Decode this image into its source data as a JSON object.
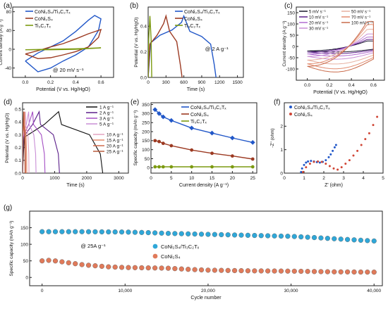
{
  "figure": {
    "colors": {
      "cns_tct": "#2157c8",
      "cns": "#9c3a22",
      "tct": "#7c9a10",
      "cyc_cns_tct": "#2fa7d8",
      "cyc_cns": "#e07a5a"
    }
  },
  "chart_data": [
    {
      "panel": "(a)",
      "type": "line",
      "xlabel": "Potential (V vs. Hg/HgO)",
      "ylabel": "Current density (A g⁻¹)",
      "xlim": [
        -0.1,
        0.7
      ],
      "ylim": [
        -60,
        90
      ],
      "xticks": [
        "0.0",
        "0.2",
        "0.4",
        "0.6"
      ],
      "yticks": [
        "-40",
        "0",
        "40",
        "80"
      ],
      "annotation": "@ 20 mV s⁻¹",
      "legend": [
        "CoNi₂S₄/Ti₃C₂Tₓ",
        "CoNi₂S₄",
        "Ti₃C₂Tₓ"
      ],
      "series": [
        {
          "name": "CoNi₂S₄/Ti₃C₂Tₓ",
          "color": "#2157c8",
          "x": [
            0.0,
            0.1,
            0.2,
            0.3,
            0.4,
            0.5,
            0.55,
            0.6,
            0.58,
            0.5,
            0.4,
            0.3,
            0.2,
            0.1,
            0.0
          ],
          "y": [
            -25,
            -8,
            5,
            18,
            38,
            62,
            72,
            65,
            40,
            5,
            -12,
            -25,
            -40,
            -48,
            -25
          ]
        },
        {
          "name": "CoNi₂S₄",
          "color": "#9c3a22",
          "x": [
            0.0,
            0.1,
            0.2,
            0.3,
            0.4,
            0.5,
            0.6,
            0.58,
            0.5,
            0.4,
            0.3,
            0.2,
            0.1,
            0.0
          ],
          "y": [
            -10,
            -3,
            5,
            12,
            22,
            33,
            42,
            25,
            5,
            -5,
            -12,
            -18,
            -20,
            -10
          ]
        },
        {
          "name": "Ti₃C₂Tₓ",
          "color": "#7c9a10",
          "x": [
            0.0,
            0.2,
            0.4,
            0.6,
            0.4,
            0.2,
            0.0
          ],
          "y": [
            -1,
            0,
            1,
            3,
            0,
            -1,
            -1
          ]
        }
      ]
    },
    {
      "panel": "(b)",
      "type": "line",
      "xlabel": "Time (s)",
      "ylabel": "Potential (V vs. Hg/HgO)",
      "xlim": [
        0,
        1600
      ],
      "ylim": [
        0,
        0.55
      ],
      "xticks": [
        "0",
        "300",
        "600",
        "900",
        "1200",
        "1500"
      ],
      "yticks": [
        "0.0",
        "0.2",
        "0.4"
      ],
      "annotation": "@ 2 A g⁻¹",
      "legend": [
        "CoNi₂S₄/Ti₃C₂Tₓ",
        "CoNi₂S₄",
        "Ti₃C₂Tₓ"
      ],
      "series": [
        {
          "name": "CoNi₂S₄/Ti₃C₂Tₓ",
          "color": "#2157c8",
          "x": [
            0,
            40,
            200,
            400,
            560,
            600,
            700,
            900,
            1050,
            1110,
            1140
          ],
          "y": [
            0.0,
            0.27,
            0.33,
            0.37,
            0.43,
            0.48,
            0.36,
            0.32,
            0.26,
            0.1,
            0.0
          ]
        },
        {
          "name": "CoNi₂S₄",
          "color": "#9c3a22",
          "x": [
            0,
            30,
            150,
            260,
            300,
            360,
            480,
            540,
            570
          ],
          "y": [
            0.0,
            0.26,
            0.33,
            0.42,
            0.48,
            0.36,
            0.28,
            0.1,
            0.0
          ]
        },
        {
          "name": "Ti₃C₂Tₓ",
          "color": "#7c9a10",
          "x": [
            0,
            10,
            30,
            50,
            60
          ],
          "y": [
            0.0,
            0.3,
            0.48,
            0.3,
            0.0
          ]
        }
      ]
    },
    {
      "panel": "(c)",
      "type": "line",
      "xlabel": "Potential (V vs. Hg/HgO)",
      "ylabel": "Current density (A g⁻¹)",
      "xlim": [
        -0.1,
        0.7
      ],
      "ylim": [
        -150,
        175
      ],
      "xticks": [
        "0.0",
        "0.2",
        "0.4",
        "0.6"
      ],
      "yticks": [
        "-100",
        "-50",
        "0",
        "50",
        "100",
        "150"
      ],
      "legend": [
        "5 mV s⁻¹",
        "10 mV s⁻¹",
        "20 mV s⁻¹",
        "30 mV s⁻¹",
        "50 mV s⁻¹",
        "70 mV s⁻¹",
        "100 mV s⁻¹"
      ],
      "series": [
        {
          "name": "5 mV s⁻¹",
          "color": "#1a1a2e",
          "peak": 35
        },
        {
          "name": "10 mV s⁻¹",
          "color": "#5b1f8a",
          "peak": 45
        },
        {
          "name": "20 mV s⁻¹",
          "color": "#b06ad0",
          "peak": 60
        },
        {
          "name": "30 mV s⁻¹",
          "color": "#c98fd6",
          "peak": 80
        },
        {
          "name": "50 mV s⁻¹",
          "color": "#e7b0a0",
          "peak": 110
        },
        {
          "name": "70 mV s⁻¹",
          "color": "#e28c70",
          "peak": 140
        },
        {
          "name": "100 mV s⁻¹",
          "color": "#c96a4a",
          "peak": 160
        }
      ]
    },
    {
      "panel": "(d)",
      "type": "line",
      "xlabel": "Time (s)",
      "ylabel": "Potential (V vs. Hg/HgO)",
      "xlim": [
        0,
        3300
      ],
      "ylim": [
        0,
        0.55
      ],
      "xticks": [
        "0",
        "1000",
        "2000",
        "3000"
      ],
      "yticks": [
        "0.0",
        "0.1",
        "0.2",
        "0.3",
        "0.4",
        "0.5"
      ],
      "legend": [
        "1 A g⁻¹",
        "2 A g⁻¹",
        "3 A g⁻¹",
        "5 A g⁻¹",
        "10 A g⁻¹",
        "15 A g⁻¹",
        "20 A g⁻¹",
        "25 A g⁻¹"
      ],
      "series": [
        {
          "name": "1 A g⁻¹",
          "color": "#111111",
          "tmax": 2500
        },
        {
          "name": "2 A g⁻¹",
          "color": "#5b1f8a",
          "tmax": 1150
        },
        {
          "name": "3 A g⁻¹",
          "color": "#a44fc4",
          "tmax": 700
        },
        {
          "name": "5 A g⁻¹",
          "color": "#c98fd6",
          "tmax": 420
        },
        {
          "name": "10 A g⁻¹",
          "color": "#e2a3c0",
          "tmax": 200
        },
        {
          "name": "15 A g⁻¹",
          "color": "#e38a6b",
          "tmax": 130
        },
        {
          "name": "20 A g⁻¹",
          "color": "#d06a4c",
          "tmax": 95
        },
        {
          "name": "25 A g⁻¹",
          "color": "#b85a3e",
          "tmax": 75
        }
      ]
    },
    {
      "panel": "(e)",
      "type": "line",
      "xlabel": "Current density (A g⁻¹)",
      "ylabel": "Specific capacity (mAh g⁻¹)",
      "xlim": [
        0,
        26
      ],
      "ylim": [
        -30,
        360
      ],
      "xticks": [
        "0",
        "5",
        "10",
        "15",
        "20",
        "25"
      ],
      "yticks": [
        "0",
        "50",
        "100",
        "150",
        "200",
        "250",
        "300",
        "350"
      ],
      "legend": [
        "CoNi₂S₄/Ti₃C₂Tₓ",
        "CoNi₂S₄",
        "Ti₃C₂Tₓ"
      ],
      "series": [
        {
          "name": "CoNi₂S₄/Ti₃C₂Tₓ",
          "color": "#2157c8",
          "x": [
            1,
            2,
            3,
            5,
            10,
            15,
            20,
            25
          ],
          "y": [
            322,
            300,
            282,
            262,
            220,
            192,
            165,
            140
          ]
        },
        {
          "name": "CoNi₂S₄",
          "color": "#9c3a22",
          "x": [
            1,
            2,
            3,
            5,
            10,
            15,
            20,
            25
          ],
          "y": [
            150,
            145,
            135,
            122,
            98,
            80,
            65,
            48
          ]
        },
        {
          "name": "Ti₃C₂Tₓ",
          "color": "#7c9a10",
          "x": [
            1,
            2,
            3,
            5,
            10,
            15,
            20,
            25
          ],
          "y": [
            5,
            5,
            5,
            5,
            5,
            5,
            5,
            5
          ]
        }
      ]
    },
    {
      "panel": "(f)",
      "type": "scatter",
      "xlabel": "Z' (ohm)",
      "ylabel": "-Z'' (ohm)",
      "xlim": [
        0,
        5
      ],
      "ylim": [
        0,
        3
      ],
      "xticks": [
        "0",
        "1",
        "2",
        "3",
        "4",
        "5"
      ],
      "yticks": [
        "0",
        "1",
        "2"
      ],
      "legend": [
        "CoNi₂S₄/Ti₃C₂Tₓ",
        "CoNi₂S₄"
      ],
      "series": [
        {
          "name": "CoNi₂S₄/Ti₃C₂Tₓ",
          "color": "#2157c8",
          "x": [
            0.85,
            0.9,
            1.0,
            1.1,
            1.2,
            1.35,
            1.5,
            1.65,
            1.8,
            1.95,
            2.1,
            2.25,
            2.35,
            2.45,
            2.55,
            2.62
          ],
          "y": [
            0.05,
            0.2,
            0.35,
            0.45,
            0.5,
            0.52,
            0.5,
            0.47,
            0.45,
            0.48,
            0.55,
            0.68,
            0.8,
            0.95,
            1.1,
            1.2
          ]
        },
        {
          "name": "CoNi₂S₄",
          "color": "#d04535",
          "x": [
            0.95,
            1.1,
            1.3,
            1.5,
            1.7,
            1.9,
            2.1,
            2.3,
            2.5,
            2.7,
            2.9,
            3.1,
            3.3,
            3.5,
            3.7,
            3.9,
            4.1,
            4.3,
            4.5,
            4.7
          ],
          "y": [
            0.05,
            0.25,
            0.4,
            0.48,
            0.5,
            0.48,
            0.4,
            0.3,
            0.2,
            0.15,
            0.25,
            0.4,
            0.55,
            0.75,
            0.95,
            1.2,
            1.45,
            1.7,
            2.05,
            2.4
          ]
        }
      ]
    },
    {
      "panel": "(g)",
      "type": "scatter",
      "xlabel": "Cycle number",
      "ylabel": "Specific capacity (mAh g⁻¹)",
      "xlim": [
        -1500,
        41000
      ],
      "ylim": [
        -25,
        200
      ],
      "xticks": [
        "0",
        "10,000",
        "20,000",
        "30,000",
        "40,000"
      ],
      "yticks": [
        "0",
        "50",
        "100",
        "150"
      ],
      "annotation": "@ 25A g⁻¹",
      "legend": [
        "CoNi₂S₄/Ti₃C₂Tₓ",
        "CoNi₂S₄"
      ],
      "series": [
        {
          "name": "CoNi₂S₄/Ti₃C₂Tₓ",
          "color": "#2fa7d8",
          "x": [
            0,
            5000,
            10000,
            13000,
            15000,
            20000,
            25000,
            30000,
            33000,
            35000,
            40000
          ],
          "y": [
            138,
            138,
            137,
            135,
            133,
            130,
            127,
            124,
            120,
            117,
            110
          ]
        },
        {
          "name": "CoNi₂S₄",
          "color": "#e07a5a",
          "x": [
            0,
            1000,
            3000,
            5000,
            8000,
            10000,
            15000,
            18000,
            20000,
            25000,
            30000,
            35000,
            40000
          ],
          "y": [
            50,
            52,
            45,
            38,
            32,
            30,
            28,
            24,
            22,
            20,
            19,
            17,
            16
          ]
        }
      ]
    }
  ]
}
